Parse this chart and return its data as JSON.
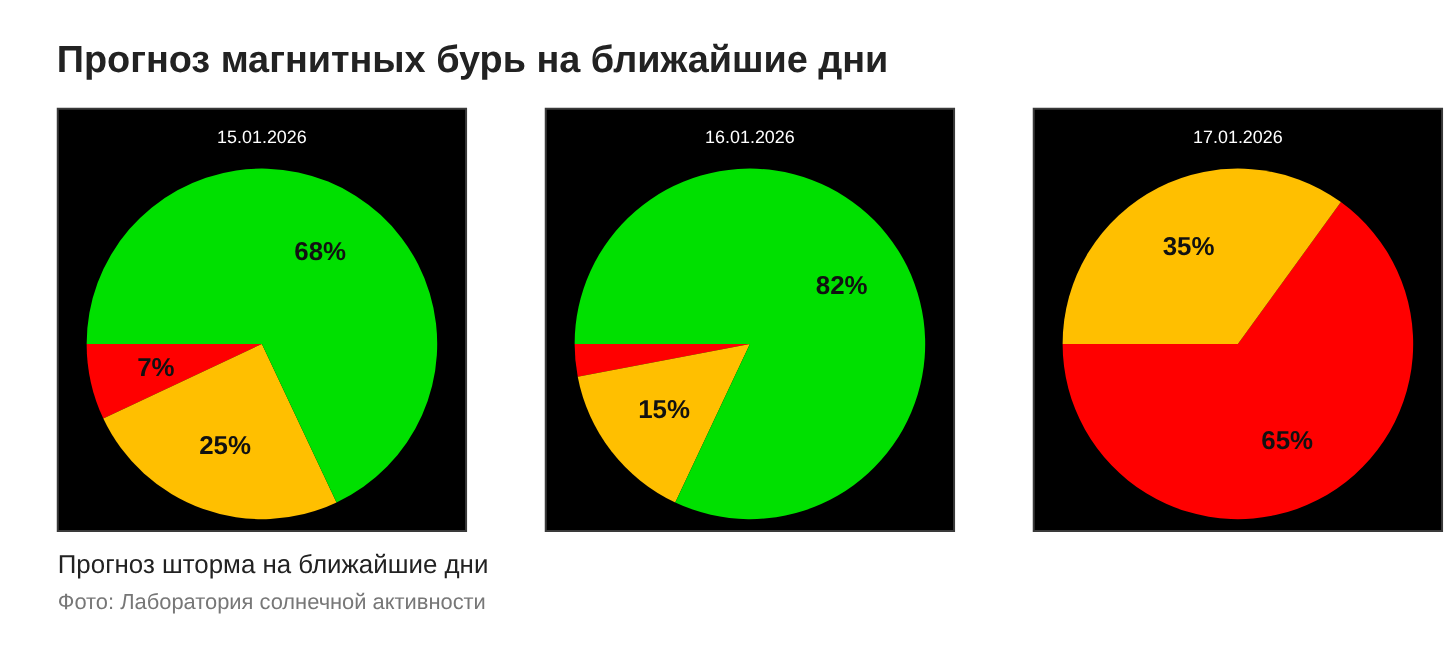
{
  "chart_data": [
    {
      "type": "pie",
      "title": "15.01.2026",
      "categories": [
        null,
        null,
        null
      ],
      "values": [
        7,
        25,
        68
      ],
      "colors": [
        "#ff0000",
        "#ffbf00",
        "#00e000"
      ],
      "value_labels": [
        "7%",
        "25%",
        "68%"
      ],
      "annotations": [
        "Прогноз магнитных бурь на ближайшие дни",
        "Прогноз шторма на ближайшие дни",
        "Фото: Лаборатория солнечной активности"
      ]
    },
    {
      "type": "pie",
      "title": "16.01.2026",
      "categories": [
        null,
        null,
        null
      ],
      "values": [
        3,
        15,
        82
      ],
      "colors": [
        "#ff0000",
        "#ffbf00",
        "#00e000"
      ],
      "value_labels": [
        null,
        "15%",
        "82%"
      ]
    },
    {
      "type": "pie",
      "title": "17.01.2026",
      "categories": [
        null,
        null
      ],
      "values": [
        65,
        35
      ],
      "colors": [
        "#ff0000",
        "#ffbf00"
      ],
      "value_labels": [
        "65%",
        "35%"
      ]
    }
  ]
}
